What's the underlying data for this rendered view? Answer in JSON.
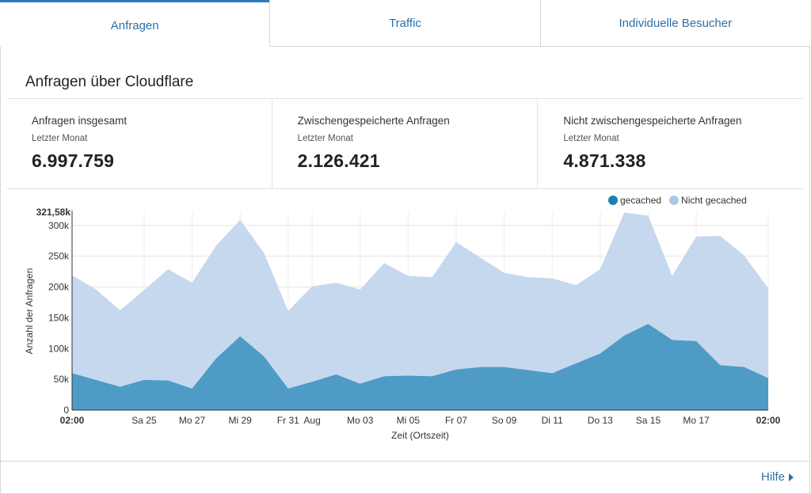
{
  "tabs": [
    {
      "label": "Anfragen",
      "active": true
    },
    {
      "label": "Traffic",
      "active": false
    },
    {
      "label": "Individuelle Besucher",
      "active": false
    }
  ],
  "section": {
    "title_prefix": "Anfragen über ",
    "title_brand": "Cloudflare"
  },
  "stats": [
    {
      "label": "Anfragen insgesamt",
      "period": "Letzter Monat",
      "value": "6.997.759"
    },
    {
      "label": "Zwischengespeicherte Anfragen",
      "period": "Letzter Monat",
      "value": "2.126.421"
    },
    {
      "label": "Nicht zwischengespeicherte Anfragen",
      "period": "Letzter Monat",
      "value": "4.871.338"
    }
  ],
  "help": {
    "label": "Hilfe",
    "icon": "caret-right-icon"
  },
  "colors": {
    "cached": "#1f7fb4",
    "uncached": "#aec7e8",
    "cached_fill": "#4e9cc6",
    "uncached_fill": "#c6d8ee",
    "link": "#2c6fa6"
  },
  "chart_data": {
    "type": "area",
    "stacked": true,
    "xlabel": "Zeit (Ortszeit)",
    "ylabel": "Anzahl der Anfragen",
    "ylim": [
      0,
      321580
    ],
    "ymax_label": "321,58k",
    "yticks": [
      0,
      50000,
      100000,
      150000,
      200000,
      250000,
      300000
    ],
    "ytick_labels": [
      "0",
      "50k",
      "100k",
      "150k",
      "200k",
      "250k",
      "300k"
    ],
    "xtick_labels": [
      {
        "i": 0,
        "label": "02:00",
        "bold": true
      },
      {
        "i": 3,
        "label": "Sa 25"
      },
      {
        "i": 5,
        "label": "Mo 27"
      },
      {
        "i": 7,
        "label": "Mi 29"
      },
      {
        "i": 9,
        "label": "Fr 31"
      },
      {
        "i": 10,
        "label": "Aug"
      },
      {
        "i": 12,
        "label": "Mo 03"
      },
      {
        "i": 14,
        "label": "Mi 05"
      },
      {
        "i": 16,
        "label": "Fr 07"
      },
      {
        "i": 18,
        "label": "So 09"
      },
      {
        "i": 20,
        "label": "Di 11"
      },
      {
        "i": 22,
        "label": "Do 13"
      },
      {
        "i": 24,
        "label": "Sa 15"
      },
      {
        "i": 26,
        "label": "Mo 17"
      },
      {
        "i": 29,
        "label": "02:00",
        "bold": true
      }
    ],
    "grid": true,
    "legend_position": "top-right",
    "series": [
      {
        "name": "gecached",
        "values": [
          60000,
          49000,
          38000,
          49000,
          48000,
          35000,
          84000,
          120000,
          87000,
          35000,
          46000,
          58000,
          43000,
          55000,
          56000,
          55000,
          66000,
          70000,
          70000,
          65000,
          60000,
          76000,
          92000,
          121000,
          140000,
          114000,
          112000,
          73000,
          70000,
          52000
        ]
      },
      {
        "name": "Nicht gecached",
        "values": [
          159000,
          147000,
          124000,
          146000,
          181000,
          172000,
          183000,
          189000,
          168000,
          126000,
          155000,
          149000,
          153000,
          184000,
          162000,
          161000,
          207000,
          178000,
          153000,
          151000,
          154000,
          127000,
          137000,
          200000,
          176000,
          104000,
          170000,
          210000,
          181000,
          146000
        ]
      }
    ]
  }
}
